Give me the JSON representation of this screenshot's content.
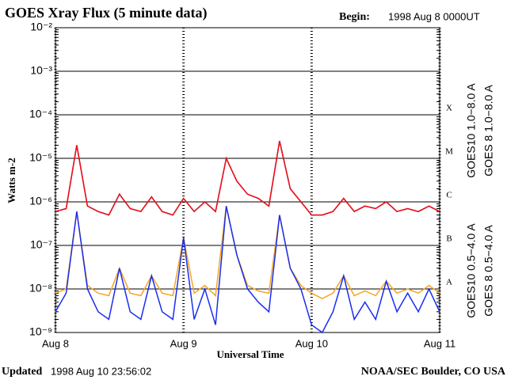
{
  "chart_data": {
    "type": "line",
    "title": "GOES Xray Flux (5 minute data)",
    "begin_label": "Begin:",
    "begin_value": "1998 Aug 8 0000UT",
    "x_label": "Universal Time",
    "y_label": "Watts m-2",
    "updated_label": "Updated",
    "updated_value": "1998 Aug 10 23:56:02",
    "source": "NOAA/SEC Boulder, CO USA",
    "flare_classes": [
      "X",
      "M",
      "C",
      "B",
      "A"
    ],
    "log_scale": true,
    "grid": true,
    "ylim": [
      1e-09,
      0.01
    ],
    "yticks": [
      {
        "value": 0.01,
        "label": "10⁻²"
      },
      {
        "value": 0.001,
        "label": "10⁻³"
      },
      {
        "value": 0.0001,
        "label": "10⁻⁴"
      },
      {
        "value": 1e-05,
        "label": "10⁻⁵"
      },
      {
        "value": 1e-06,
        "label": "10⁻⁶"
      },
      {
        "value": 1e-07,
        "label": "10⁻⁷"
      },
      {
        "value": 1e-08,
        "label": "10⁻⁸"
      },
      {
        "value": 1e-09,
        "label": "10⁻⁹"
      }
    ],
    "xlim": [
      0,
      72
    ],
    "xticks": [
      {
        "value": 0,
        "label": "Aug 8"
      },
      {
        "value": 24,
        "label": "Aug 9"
      },
      {
        "value": 48,
        "label": "Aug 10"
      },
      {
        "value": 72,
        "label": "Aug 11"
      }
    ],
    "x": [
      0,
      2,
      4,
      6,
      8,
      10,
      12,
      14,
      16,
      18,
      20,
      22,
      24,
      26,
      28,
      30,
      32,
      34,
      36,
      38,
      40,
      42,
      44,
      46,
      48,
      50,
      52,
      54,
      56,
      58,
      60,
      62,
      64,
      66,
      68,
      70,
      72
    ],
    "series": [
      {
        "name": "GOES10 1.0−8.0 A",
        "color": "#7b1fa2",
        "legend_group": "long",
        "values": [
          6e-07,
          7e-07,
          2e-05,
          8e-07,
          6e-07,
          5e-07,
          1.5e-06,
          7e-07,
          6e-07,
          1.3e-06,
          6e-07,
          5e-07,
          1.2e-06,
          6e-07,
          1e-06,
          6e-07,
          1e-05,
          3e-06,
          1.5e-06,
          1.2e-06,
          8e-07,
          2.5e-05,
          2e-06,
          1e-06,
          5e-07,
          5e-07,
          6e-07,
          1.2e-06,
          6e-07,
          8e-07,
          7e-07,
          1e-06,
          6e-07,
          7e-07,
          6e-07,
          8e-07,
          6e-07
        ]
      },
      {
        "name": "GOES 8 1.0−8.0 A",
        "color": "#ee1111",
        "legend_group": "long",
        "values": [
          6e-07,
          7e-07,
          2e-05,
          8e-07,
          6e-07,
          5e-07,
          1.5e-06,
          7e-07,
          6e-07,
          1.3e-06,
          6e-07,
          5e-07,
          1.2e-06,
          6e-07,
          1e-06,
          6e-07,
          1e-05,
          3e-06,
          1.5e-06,
          1.2e-06,
          8e-07,
          2.5e-05,
          2e-06,
          1e-06,
          5e-07,
          5e-07,
          6e-07,
          1.2e-06,
          6e-07,
          8e-07,
          7e-07,
          1e-06,
          6e-07,
          7e-07,
          6e-07,
          8e-07,
          6e-07
        ]
      },
      {
        "name": "GOES10 0.5−4.0 A",
        "color": "#f5a623",
        "legend_group": "short",
        "values": [
          8e-09,
          1e-08,
          6e-07,
          1.2e-08,
          8e-09,
          7e-09,
          3e-08,
          8e-09,
          7e-09,
          2e-08,
          8e-09,
          7e-09,
          1.5e-07,
          8e-09,
          1.2e-08,
          7e-09,
          8e-07,
          6e-08,
          1.2e-08,
          9e-09,
          8e-09,
          5e-07,
          3e-08,
          1.2e-08,
          8e-09,
          6e-09,
          8e-09,
          2e-08,
          7e-09,
          9e-09,
          7e-09,
          1.5e-08,
          8e-09,
          1e-08,
          8e-09,
          1.2e-08,
          8e-09
        ]
      },
      {
        "name": "GOES 8 0.5−4.0 A",
        "color": "#1a2cf0",
        "legend_group": "short",
        "values": [
          3e-09,
          8e-09,
          6e-07,
          1e-08,
          3e-09,
          2e-09,
          3e-08,
          3e-09,
          2e-09,
          2e-08,
          3e-09,
          2e-09,
          1.5e-07,
          2e-09,
          1e-08,
          1.5e-09,
          8e-07,
          6e-08,
          1e-08,
          5e-09,
          3e-09,
          5e-07,
          3e-08,
          1e-08,
          1.5e-09,
          1e-09,
          3e-09,
          2e-08,
          2e-09,
          5e-09,
          2e-09,
          1.5e-08,
          3e-09,
          8e-09,
          3e-09,
          1e-08,
          3e-09
        ]
      }
    ]
  }
}
